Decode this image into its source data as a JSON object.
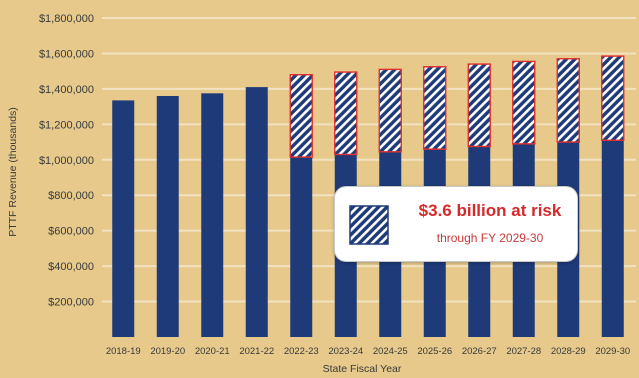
{
  "chart_data": {
    "type": "bar",
    "stacked": true,
    "xlabel": "State Fiscal Year",
    "ylabel": "PTTF Revenue (thousands)",
    "ylim": [
      0,
      1800000
    ],
    "yticks": [
      200000,
      400000,
      600000,
      800000,
      1000000,
      1200000,
      1400000,
      1600000,
      1800000
    ],
    "ytick_labels": [
      "$200,000",
      "$400,000",
      "$600,000",
      "$800,000",
      "$1,000,000",
      "$1,200,000",
      "$1,400,000",
      "$1,600,000",
      "$1,800,000"
    ],
    "grid": true,
    "categories": [
      "2018-19",
      "2019-20",
      "2020-21",
      "2021-22",
      "2022-23",
      "2023-24",
      "2024-25",
      "2025-26",
      "2026-27",
      "2027-28",
      "2028-29",
      "2029-30"
    ],
    "series": [
      {
        "values": [
          1335000,
          1360000,
          1375000,
          1410000,
          1015000,
          1030000,
          1045000,
          1060000,
          1075000,
          1090000,
          1100000,
          1110000
        ],
        "color": "#1e3a78"
      },
      {
        "values": [
          0,
          0,
          0,
          0,
          465000,
          465000,
          465000,
          465000,
          465000,
          465000,
          470000,
          475000
        ],
        "color": "#1e3a78",
        "pattern": "diagonal-hatch",
        "outline": "#e03030"
      }
    ],
    "annotations": [
      {
        "title": "$3.6 billion at risk",
        "subtitle": "through FY 2029-30"
      }
    ]
  },
  "colors": {
    "background": "#e6c98b",
    "bar": "#1e3a78",
    "at_risk_outline": "#e03030",
    "hatch_light": "#ffffff",
    "grid": "#f2e2bf",
    "callout_text": "#d42a2a"
  }
}
